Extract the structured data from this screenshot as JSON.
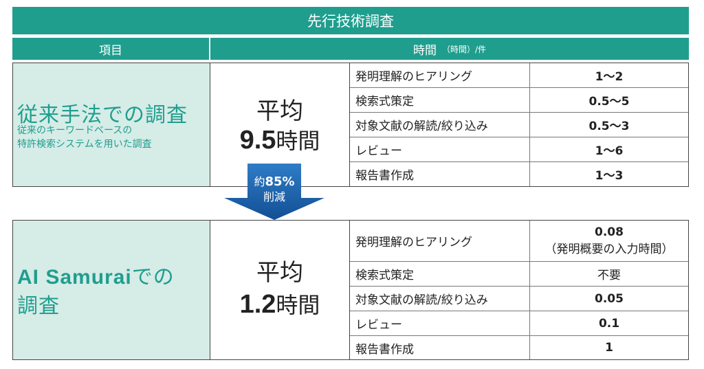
{
  "header": {
    "title": "先行技術調査",
    "col_item": "項目",
    "col_time": "時間",
    "col_time_unit": "（時間）/件"
  },
  "conventional": {
    "title": "従来手法での調査",
    "subtitle_line1": "従来のキーワードベースの",
    "subtitle_line2": "特許検索システムを用いた調査",
    "avg_label": "平均",
    "avg_value": "9.5",
    "avg_unit": "時間",
    "tasks": [
      {
        "name": "発明理解のヒアリング",
        "value": "1〜2"
      },
      {
        "name": "検索式策定",
        "value": "0.5〜5"
      },
      {
        "name": "対象文献の解読/絞り込み",
        "value": "0.5〜3"
      },
      {
        "name": "レビュー",
        "value": "1〜6"
      },
      {
        "name": "報告書作成",
        "value": "1〜3"
      }
    ]
  },
  "reduction": {
    "prefix": "約",
    "percent": "85%",
    "label": "削減"
  },
  "ai": {
    "title_brand": "AI Samurai",
    "title_rest1": "での",
    "title_rest2": "調査",
    "avg_label": "平均",
    "avg_value": "1.2",
    "avg_unit": "時間",
    "tasks": [
      {
        "name": "発明理解のヒアリング",
        "value": "0.08",
        "note": "（発明概要の入力時間）"
      },
      {
        "name": "検索式策定",
        "value": "不要"
      },
      {
        "name": "対象文献の解読/絞り込み",
        "value": "0.05"
      },
      {
        "name": "レビュー",
        "value": "0.1"
      },
      {
        "name": "報告書作成",
        "value": "1"
      }
    ]
  },
  "colors": {
    "header_bg": "#1f9e8e",
    "category_bg": "#d6ece7",
    "accent_text": "#1f9e8e",
    "arrow": "#1b5fa8"
  }
}
